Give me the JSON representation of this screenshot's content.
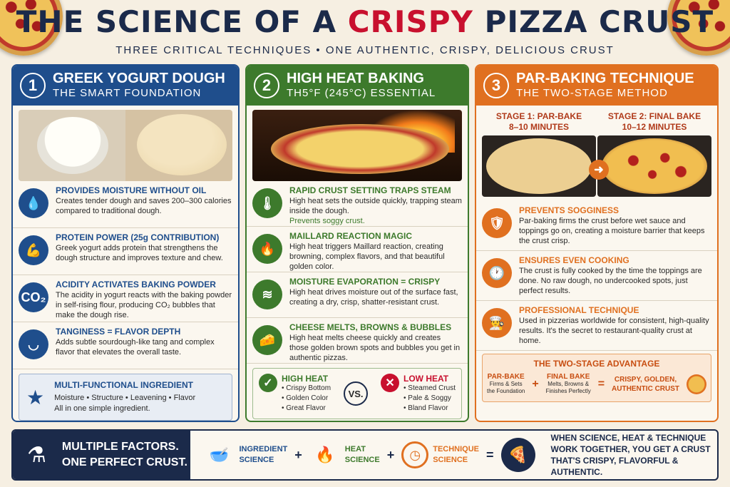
{
  "title": {
    "pre": "THE SCIENCE OF A",
    "accent": "CRISPY",
    "post": "PIZZA CRUST"
  },
  "subtitle": "THREE CRITICAL TECHNIQUES • ONE AUTHENTIC, CRISPY, DELICIOUS CRUST",
  "col1": {
    "num": "1",
    "title": "GREEK YOGURT DOUGH",
    "sub": "THE SMART FOUNDATION",
    "items": [
      {
        "icon": "water-drop-icon",
        "glyph": "💧",
        "title": "PROVIDES MOISTURE WITHOUT OIL",
        "desc": "Creates tender dough and saves 200–300 calories compared to traditional dough."
      },
      {
        "icon": "flexed-arm-icon",
        "glyph": "💪",
        "title": "PROTEIN POWER (25g CONTRIBUTION)",
        "desc": "Greek yogurt adds protein that strengthens the dough structure and improves texture and chew."
      },
      {
        "icon": "co2-bubble-icon",
        "glyph": "CO₂",
        "title": "ACIDITY ACTIVATES BAKING POWDER",
        "desc": "The acidity in yogurt reacts with the baking powder in self-rising flour, producing CO₂ bubbles that make the dough rise."
      },
      {
        "icon": "bowl-icon",
        "glyph": "◡",
        "title": "TANGINESS = FLAVOR DEPTH",
        "desc": "Adds subtle sourdough-like tang and complex flavor that elevates the overall taste."
      }
    ],
    "multi": {
      "title": "MULTI-FUNCTIONAL INGREDIENT",
      "line1": "Moisture • Structure • Leavening • Flavor",
      "line2": "All in one simple ingredient."
    }
  },
  "col2": {
    "num": "2",
    "title": "HIGH HEAT BAKING",
    "sub": "TH5°F (245°C) ESSENTIAL",
    "items": [
      {
        "icon": "thermometer-icon",
        "glyph": "🌡",
        "title": "RAPID CRUST SETTING TRAPS STEAM",
        "desc": "High heat sets the outside quickly, trapping steam inside the dough.",
        "extra": "Prevents soggy crust."
      },
      {
        "icon": "flame-icon",
        "glyph": "🔥",
        "title": "MAILLARD REACTION MAGIC",
        "desc": "High heat triggers Maillard reaction, creating browning, complex flavors, and that beautiful golden color.",
        "extra": ""
      },
      {
        "icon": "steam-icon",
        "glyph": "≋",
        "title": "MOISTURE EVAPORATION = CRISPY",
        "desc": "High heat drives moisture out of the surface fast, creating a dry, crisp, shatter-resistant crust.",
        "extra": ""
      },
      {
        "icon": "cheese-icon",
        "glyph": "🧀",
        "title": "CHEESE MELTS, BROWNS & BUBBLES",
        "desc": "High heat melts cheese quickly and creates those golden brown spots and bubbles you get in authentic pizzas.",
        "extra": ""
      }
    ],
    "compare": {
      "high": {
        "title": "HIGH HEAT",
        "items": [
          "• Crispy Bottom",
          "• Golden Color",
          "• Great Flavor"
        ]
      },
      "vs": "VS.",
      "low": {
        "title": "LOW HEAT",
        "items": [
          "• Steamed Crust",
          "• Pale & Soggy",
          "• Bland Flavor"
        ]
      }
    }
  },
  "col3": {
    "num": "3",
    "title": "PAR-BAKING TECHNIQUE",
    "sub": "THE TWO-STAGE METHOD",
    "stage1": {
      "line1": "STAGE 1: PAR-BAKE",
      "line2": "8–10 MINUTES"
    },
    "stage2": {
      "line1": "STAGE 2: FINAL BAKE",
      "line2": "10–12 MINUTES"
    },
    "items": [
      {
        "icon": "shield-icon",
        "glyph": "🛡",
        "title": "PREVENTS SOGGINESS",
        "desc": "Par-baking firms the crust before wet sauce and toppings go on, creating a moisture barrier that keeps the crust crisp."
      },
      {
        "icon": "clock-icon",
        "glyph": "🕐",
        "title": "ENSURES EVEN COOKING",
        "desc": "The crust is fully cooked by the time the toppings are done. No raw dough, no undercooked spots, just perfect results."
      },
      {
        "icon": "chef-hat-icon",
        "glyph": "👨‍🍳",
        "title": "PROFESSIONAL TECHNIQUE",
        "desc": "Used in pizzerias worldwide for consistent, high-quality results. It's the secret to restaurant-quality crust at home."
      }
    ],
    "adv": {
      "title": "THE TWO-STAGE ADVANTAGE",
      "a_title": "PAR-BAKE",
      "a_desc1": "Firms & Sets",
      "a_desc2": "the Foundation",
      "b_title": "FINAL BAKE",
      "b_desc1": "Melts, Browns &",
      "b_desc2": "Finishes Perfectly",
      "plus": "+",
      "eq": "=",
      "result1": "CRISPY, GOLDEN,",
      "result2": "AUTHENTIC CRUST"
    }
  },
  "footer": {
    "left1": "MULTIPLE FACTORS.",
    "left2": "ONE PERFECT CRUST.",
    "f1a": "INGREDIENT",
    "f1b": "SCIENCE",
    "f2a": "HEAT",
    "f2b": "SCIENCE",
    "f3a": "TECHNIQUE",
    "f3b": "SCIENCE",
    "plus": "+",
    "eq": "=",
    "end1": "WHEN SCIENCE, HEAT & TECHNIQUE",
    "end2": "WORK TOGETHER, YOU GET A CRUST",
    "end3": "THAT'S CRISPY, FLAVORFUL & AUTHENTIC.",
    "colors": {
      "ingredient": "#1f4e8c",
      "heat": "#3d7a2c",
      "technique": "#e07020"
    }
  }
}
